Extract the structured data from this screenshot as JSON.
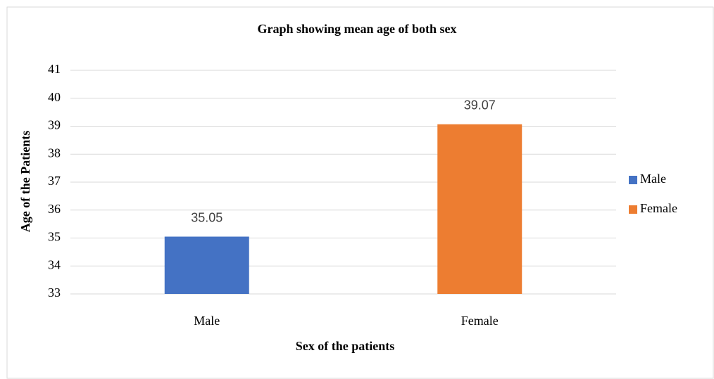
{
  "chart_data": {
    "type": "bar",
    "title": "Graph  showing mean age of both sex",
    "x_label": "Sex of the patients",
    "y_label": "Age of the Patients",
    "categories": [
      "Male",
      "Female"
    ],
    "series": [
      {
        "name": "Male",
        "color": "#4472c4",
        "values": [
          35.05,
          null
        ]
      },
      {
        "name": "Female",
        "color": "#ed7d31",
        "values": [
          null,
          39.07
        ]
      }
    ],
    "ylim": [
      33,
      41
    ],
    "yticks": [
      33,
      34,
      35,
      36,
      37,
      38,
      39,
      40,
      41
    ],
    "grid": true,
    "legend": "right"
  }
}
